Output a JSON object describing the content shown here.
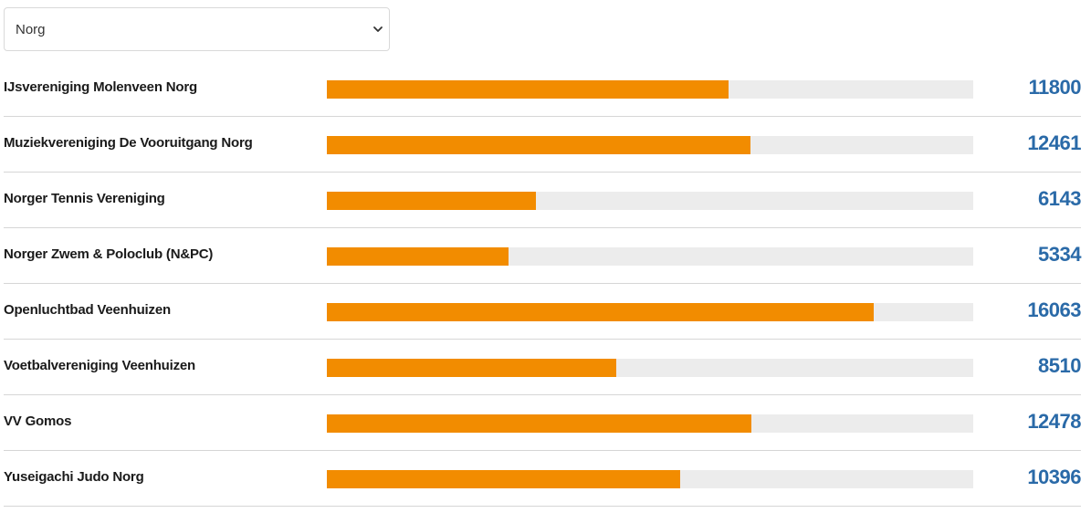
{
  "filter": {
    "selected": "Norg"
  },
  "colors": {
    "bar_fill": "#f28c00",
    "bar_track": "#ececec",
    "value_text": "#2a6aa8"
  },
  "scale_max": 19000,
  "rows": [
    {
      "label": "IJsvereniging Molenveen Norg",
      "value": "11800"
    },
    {
      "label": "Muziekvereniging De Vooruitgang Norg",
      "value": "12461"
    },
    {
      "label": "Norger Tennis Vereniging",
      "value": "6143"
    },
    {
      "label": "Norger Zwem & Poloclub (N&PC)",
      "value": "5334"
    },
    {
      "label": "Openluchtbad Veenhuizen",
      "value": "16063"
    },
    {
      "label": "Voetbalvereniging Veenhuizen",
      "value": "8510"
    },
    {
      "label": "VV Gomos",
      "value": "12478"
    },
    {
      "label": "Yuseigachi Judo Norg",
      "value": "10396"
    }
  ]
}
